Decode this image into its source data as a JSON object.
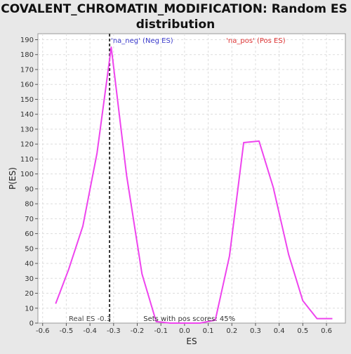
{
  "chart_data": {
    "type": "line",
    "title": "COVALENT_CHROMATIN_MODIFICATION: Random ES distribution",
    "title_lines": [
      "COVALENT_CHROMATIN_MODIFICATION: Random ES",
      "distribution"
    ],
    "xlabel": "ES",
    "ylabel": "P(ES)",
    "xlim": [
      -0.62,
      0.68
    ],
    "ylim": [
      0,
      194
    ],
    "x_ticks": [
      "-0.6",
      "-0.5",
      "-0.4",
      "-0.3",
      "-0.2",
      "-0.1",
      "0.0",
      "0.1",
      "0.2",
      "0.3",
      "0.4",
      "0.5",
      "0.6"
    ],
    "x_tick_values": [
      -0.6,
      -0.5,
      -0.4,
      -0.3,
      -0.2,
      -0.1,
      0.0,
      0.1,
      0.2,
      0.3,
      0.4,
      0.5,
      0.6
    ],
    "y_ticks": [
      "0",
      "10",
      "20",
      "30",
      "40",
      "50",
      "60",
      "70",
      "80",
      "90",
      "100",
      "110",
      "120",
      "130",
      "140",
      "150",
      "160",
      "170",
      "180",
      "190"
    ],
    "y_tick_values": [
      0,
      10,
      20,
      30,
      40,
      50,
      60,
      70,
      80,
      90,
      100,
      110,
      120,
      130,
      140,
      150,
      160,
      170,
      180,
      190
    ],
    "grid": true,
    "series": [
      {
        "color": "#ee44ee",
        "x": [
          -0.545,
          -0.49,
          -0.43,
          -0.37,
          -0.31,
          -0.245,
          -0.18,
          -0.12,
          -0.06,
          0.0,
          0.065,
          0.13,
          0.19,
          0.25,
          0.315,
          0.375,
          0.44,
          0.5,
          0.56,
          0.625
        ],
        "y": [
          13,
          36,
          65,
          114,
          185,
          99,
          33,
          1,
          0,
          0,
          0,
          2,
          45,
          121,
          122,
          91,
          46,
          15,
          3,
          3
        ]
      }
    ],
    "real_es": {
      "x": -0.317,
      "label": "Real ES -0.3",
      "color": "#333333"
    },
    "annotations": [
      {
        "text": "'na_neg' (Neg ES)",
        "x": -0.317,
        "y": 190,
        "color": "#3a3acc"
      },
      {
        "text": "'na_pos' (Pos ES)",
        "x": 0.17,
        "y": 190,
        "color": "#dd3333"
      },
      {
        "text": "Sets with pos scores: 45%",
        "x": -0.18,
        "y": 0.5,
        "color": "#333333"
      }
    ]
  }
}
